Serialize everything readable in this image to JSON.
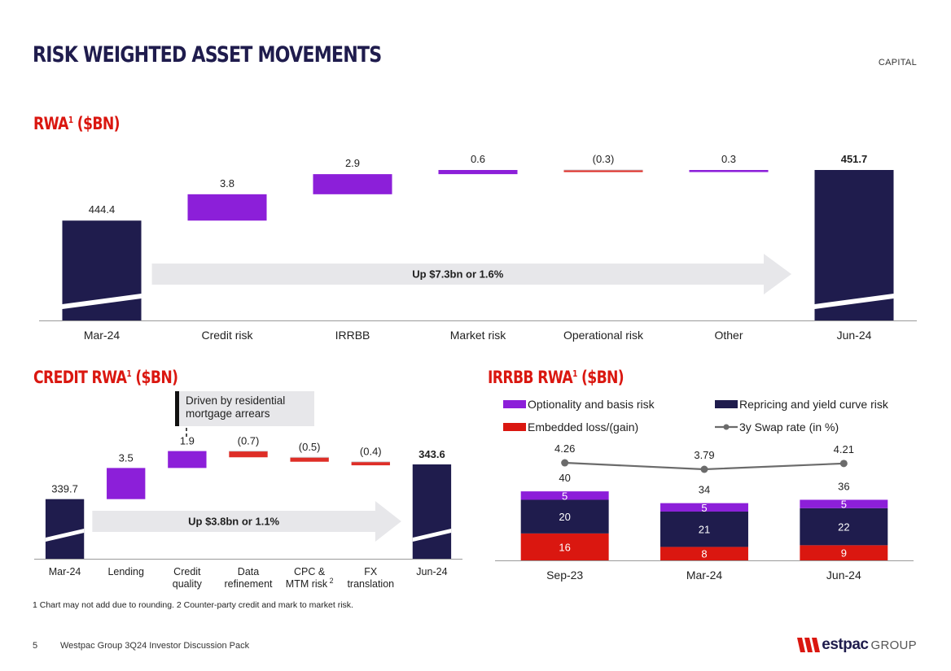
{
  "header": {
    "title": "RISK WEIGHTED ASSET MOVEMENTS",
    "section_tag": "CAPITAL"
  },
  "colors": {
    "navy": "#1f1c4d",
    "purple": "#8c1fd9",
    "red": "#da1710",
    "grey_arrow": "#e7e7ea",
    "line": "#6b6b6b"
  },
  "footnote": "1 Chart may not add due to rounding. 2 Counter-party credit and mark to market risk.",
  "footer": {
    "page": "5",
    "text": "Westpac Group 3Q24 Investor Discussion Pack",
    "brand": "estpac",
    "brand_suffix": "GROUP"
  },
  "chart_data": [
    {
      "type": "bar",
      "subtype": "waterfall",
      "title": "RWA",
      "title_sup": "1",
      "title_suffix": " ($BN)",
      "categories": [
        "Mar-24",
        "Credit risk",
        "IRRBB",
        "Market risk",
        "Operational risk",
        "Other",
        "Jun-24"
      ],
      "values": [
        444.4,
        3.8,
        2.9,
        0.6,
        -0.3,
        0.3,
        451.7
      ],
      "labels": [
        "444.4",
        "3.8",
        "2.9",
        "0.6",
        "(0.3)",
        "0.3",
        "451.7"
      ],
      "kinds": [
        "total",
        "delta",
        "delta",
        "delta",
        "delta",
        "delta",
        "total"
      ],
      "annotation": "Up $7.3bn or 1.6%"
    },
    {
      "type": "bar",
      "subtype": "waterfall",
      "title": "CREDIT RWA",
      "title_sup": "1",
      "title_suffix": " ($BN)",
      "categories": [
        "Mar-24",
        "Lending",
        "Credit quality",
        "Data refinement",
        "CPC & MTM risk",
        "FX translation",
        "Jun-24"
      ],
      "category_lines": [
        [
          "Mar-24"
        ],
        [
          "Lending"
        ],
        [
          "Credit",
          "quality"
        ],
        [
          "Data",
          "refinement"
        ],
        [
          "CPC &",
          "MTM risk"
        ],
        [
          "FX",
          "translation"
        ],
        [
          "Jun-24"
        ]
      ],
      "category_sups": [
        "",
        "",
        "",
        "",
        "2",
        "",
        ""
      ],
      "values": [
        339.7,
        3.5,
        1.9,
        -0.7,
        -0.5,
        -0.4,
        343.6
      ],
      "labels": [
        "339.7",
        "3.5",
        "1.9",
        "(0.7)",
        "(0.5)",
        "(0.4)",
        "343.6"
      ],
      "kinds": [
        "total",
        "delta",
        "delta",
        "delta",
        "delta",
        "delta",
        "total"
      ],
      "annotation": "Up $3.8bn or 1.1%",
      "callout": "Driven by residential mortgage arrears"
    },
    {
      "type": "bar",
      "subtype": "stacked-with-line",
      "title": "IRRBB RWA",
      "title_sup": "1",
      "title_suffix": " ($BN)",
      "categories": [
        "Sep-23",
        "Mar-24",
        "Jun-24"
      ],
      "series": [
        {
          "name": "Embedded loss/(gain)",
          "values": [
            16,
            8,
            9
          ],
          "color": "#da1710"
        },
        {
          "name": "Repricing and yield curve risk",
          "values": [
            20,
            21,
            22
          ],
          "color": "#1f1c4d"
        },
        {
          "name": "Optionality and basis risk",
          "values": [
            5,
            5,
            5
          ],
          "color": "#8c1fd9"
        }
      ],
      "totals": [
        40,
        34,
        36
      ],
      "line_series": {
        "name": "3y Swap rate (in %)",
        "values": [
          4.26,
          3.79,
          4.21
        ],
        "labels": [
          "4.26",
          "3.79",
          "4.21"
        ]
      },
      "legend": [
        "Optionality and basis risk",
        "Repricing and yield curve risk",
        "Embedded loss/(gain)",
        "3y Swap rate (in %)"
      ]
    }
  ]
}
